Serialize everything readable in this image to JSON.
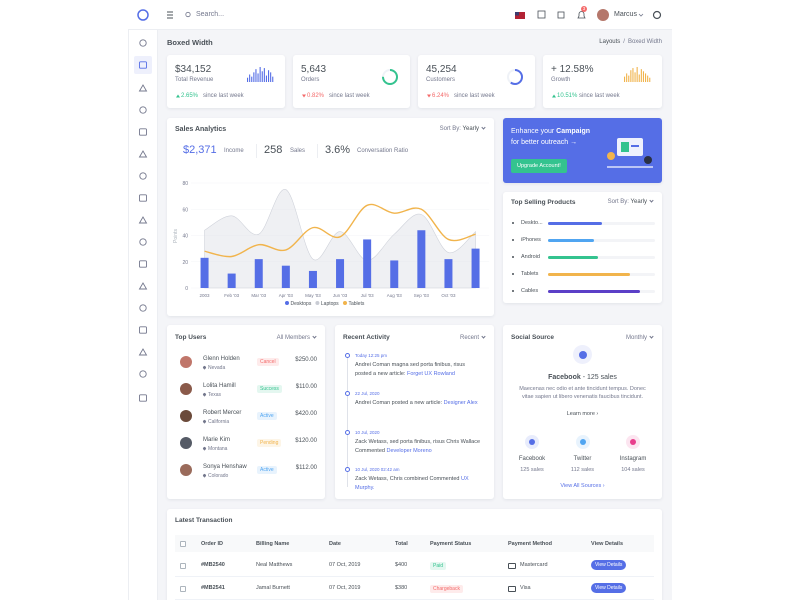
{
  "topbar": {
    "search_placeholder": "Search...",
    "user": "Marcus",
    "notification_count": "3"
  },
  "page": {
    "title": "Boxed Width",
    "breadcrumb": [
      "Layouts",
      "Boxed Width"
    ]
  },
  "stats": [
    {
      "value": "$34,152",
      "label": "Total Revenue",
      "change": "2.65%",
      "trend": "up",
      "change_color": "#34c38f",
      "note": "since last week",
      "chart": {
        "type": "bar",
        "color": "#556ee6",
        "values": [
          4,
          7,
          5,
          9,
          12,
          8,
          14,
          10,
          13,
          6,
          11,
          9,
          5
        ]
      }
    },
    {
      "value": "5,643",
      "label": "Orders",
      "change": "0.82%",
      "trend": "down",
      "change_color": "#f46a6a",
      "note": "since last week",
      "chart": {
        "type": "ring",
        "color": "#34c38f",
        "value": 75
      }
    },
    {
      "value": "45,254",
      "label": "Customers",
      "change": "6.24%",
      "trend": "down",
      "change_color": "#f46a6a",
      "note": "since last week",
      "chart": {
        "type": "ring",
        "color": "#556ee6",
        "value": 60
      }
    },
    {
      "value": "+ 12.58%",
      "label": "Growth",
      "change": "10.51%",
      "trend": "up",
      "change_color": "#34c38f",
      "note": "since last week",
      "chart": {
        "type": "bar",
        "color": "#f1b44c",
        "values": [
          5,
          8,
          6,
          11,
          13,
          9,
          14,
          7,
          12,
          10,
          8,
          6,
          4
        ]
      }
    }
  ],
  "chart_data": {
    "type": "combo",
    "title": "Sales Analytics",
    "sort_label": "Sort By:",
    "sort_value": "Yearly",
    "metrics": [
      {
        "value": "$2,371",
        "label": "Income"
      },
      {
        "value": "258",
        "label": "Sales"
      },
      {
        "value": "3.6%",
        "label": "Conversation Ratio"
      }
    ],
    "y_label": "Points",
    "categories": [
      "2003",
      "Feb '03",
      "Mar '03",
      "Apr '03",
      "May '03",
      "Jun '03",
      "Jul '03",
      "Aug '03",
      "Sep '03",
      "Oct '03",
      null
    ],
    "series": [
      {
        "name": "Desktops",
        "type": "bar",
        "color": "#556ee6",
        "values": [
          23,
          11,
          22,
          17,
          13,
          22,
          37,
          21,
          44,
          22,
          30
        ]
      },
      {
        "name": "Laptops",
        "type": "area",
        "color": "#dcdee4",
        "values": [
          44,
          55,
          41,
          75,
          22,
          43,
          21,
          41,
          56,
          27,
          43
        ]
      },
      {
        "name": "Tablets",
        "type": "line",
        "color": "#f1b44c",
        "values": [
          28,
          24,
          33,
          29,
          46,
          39,
          63,
          57,
          60,
          37,
          41
        ]
      }
    ],
    "ylim": [
      0,
      80
    ],
    "yticks": [
      0,
      20,
      40,
      60,
      80
    ],
    "grid": true
  },
  "promo": {
    "text_start": "Enhance your ",
    "highlight": "Campaign",
    "line2": "for better outreach →",
    "button": "Upgrade Account!"
  },
  "top_products": {
    "title": "Top Selling Products",
    "sort_label": "Sort By:",
    "sort_value": "Yearly",
    "items": [
      {
        "name": "Deskto...",
        "value": 50,
        "color": "#556ee6"
      },
      {
        "name": "iPhones",
        "value": 43,
        "color": "#50a5f1"
      },
      {
        "name": "Android",
        "value": 47,
        "color": "#34c38f"
      },
      {
        "name": "Tablets",
        "value": 77,
        "color": "#f1b44c"
      },
      {
        "name": "Cables",
        "value": 86,
        "color": "#5b3fc7"
      }
    ]
  },
  "top_users": {
    "title": "Top Users",
    "filter": "All Members",
    "rows": [
      {
        "name": "Glenn Holden",
        "location": "Nevada",
        "status": "Cancel",
        "status_color": "#f46a6a",
        "amount": "$250.00",
        "avatar": "#c0766a"
      },
      {
        "name": "Lolita Hamill",
        "location": "Texas",
        "status": "Success",
        "status_color": "#34c38f",
        "amount": "$110.00",
        "avatar": "#8a5a4a"
      },
      {
        "name": "Robert Mercer",
        "location": "California",
        "status": "Active",
        "status_color": "#50a5f1",
        "amount": "$420.00",
        "avatar": "#6b4a3a"
      },
      {
        "name": "Marie Kim",
        "location": "Montana",
        "status": "Pending",
        "status_color": "#f1b44c",
        "amount": "$120.00",
        "avatar": "#555b66"
      },
      {
        "name": "Sonya Henshaw",
        "location": "Colorado",
        "status": "Active",
        "status_color": "#50a5f1",
        "amount": "$112.00",
        "avatar": "#9a6b5b"
      }
    ]
  },
  "recent_activity": {
    "title": "Recent Activity",
    "filter": "Recent",
    "items": [
      {
        "time": "Today 12:25 pm",
        "text": "Andrei Coman magna sed porta finibus, risus posted a new article: ",
        "link": "Forget UX Rowland"
      },
      {
        "time": "22 Jul, 2020",
        "text": "Andrei Coman posted a new article: ",
        "link": "Designer Alex"
      },
      {
        "time": "10 Jul, 2020",
        "text": "Zack Wetass, sed porta finibus, risus Chris Wallace Commented ",
        "link": "Developer Moreno"
      },
      {
        "time": "10 Jul, 2020 02:42 am",
        "text": "Zack Wetass, Chris combined Commented ",
        "link": "UX Murphy."
      }
    ]
  },
  "social_source": {
    "title": "Social Source",
    "filter": "Monthly",
    "featured_name": "Facebook",
    "featured_detail": " - 125 sales",
    "description": "Maecenas nec odio et ante tincidunt tempus. Donec vitae sapien ut libero venenatis faucibus tincidunt.",
    "learn_more": "Learn more ›",
    "sources": [
      {
        "name": "Facebook",
        "sales": "125 sales",
        "color": "#556ee6"
      },
      {
        "name": "Twitter",
        "sales": "112 sales",
        "color": "#50a5f1"
      },
      {
        "name": "Instagram",
        "sales": "104 sales",
        "color": "#e83e8c"
      }
    ],
    "view_all": "View All Sources ›"
  },
  "transactions": {
    "title": "Latest Transaction",
    "columns": [
      "Order ID",
      "Billing Name",
      "Date",
      "Total",
      "Payment Status",
      "Payment Method",
      "View Details"
    ],
    "rows": [
      [
        "#MB2540",
        "Neal Matthews",
        "07 Oct, 2019",
        "$400",
        "Paid",
        "Mastercard",
        "View Details"
      ],
      [
        "#MB2541",
        "Jamal Burnett",
        "07 Oct, 2019",
        "$380",
        "Chargeback",
        "Visa",
        "View Details"
      ]
    ],
    "status_colors": [
      "#34c38f",
      "#f46a6a"
    ]
  }
}
